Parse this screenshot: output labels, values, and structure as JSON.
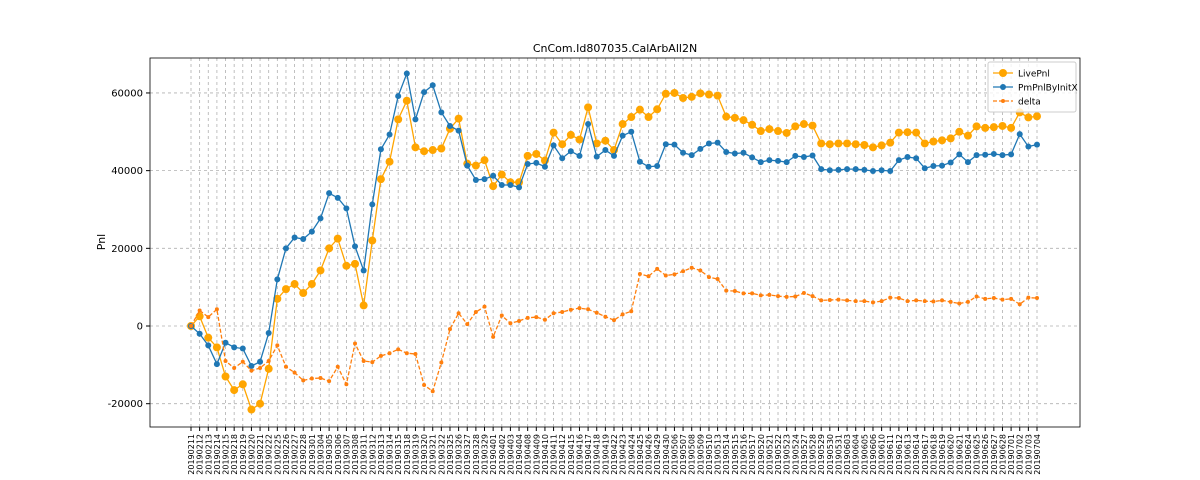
{
  "chart_data": {
    "type": "line",
    "title": "CnCom.Id807035.CalArbAll2N",
    "ylabel": "Pnl",
    "categories": [
      "20190211",
      "20190212",
      "20190213",
      "20190214",
      "20190215",
      "20190218",
      "20190219",
      "20190220",
      "20190221",
      "20190222",
      "20190225",
      "20190226",
      "20190227",
      "20190228",
      "20190301",
      "20190304",
      "20190305",
      "20190306",
      "20190307",
      "20190308",
      "20190311",
      "20190312",
      "20190313",
      "20190314",
      "20190315",
      "20190318",
      "20190319",
      "20190320",
      "20190321",
      "20190322",
      "20190325",
      "20190326",
      "20190327",
      "20190328",
      "20190329",
      "20190401",
      "20190402",
      "20190403",
      "20190404",
      "20190408",
      "20190409",
      "20190410",
      "20190411",
      "20190412",
      "20190415",
      "20190416",
      "20190417",
      "20190418",
      "20190419",
      "20190422",
      "20190423",
      "20190424",
      "20190425",
      "20190426",
      "20190429",
      "20190430",
      "20190506",
      "20190507",
      "20190508",
      "20190509",
      "20190510",
      "20190513",
      "20190514",
      "20190515",
      "20190516",
      "20190517",
      "20190520",
      "20190521",
      "20190522",
      "20190523",
      "20190524",
      "20190527",
      "20190528",
      "20190529",
      "20190530",
      "20190531",
      "20190603",
      "20190604",
      "20190605",
      "20190606",
      "20190610",
      "20190611",
      "20190612",
      "20190613",
      "20190614",
      "20190617",
      "20190618",
      "20190619",
      "20190620",
      "20190621",
      "20190624",
      "20190625",
      "20190626",
      "20190627",
      "20190628",
      "20190701",
      "20190702",
      "20190703",
      "20190704"
    ],
    "series": [
      {
        "name": "LivePnl",
        "color": "#ffa500",
        "style": "solid",
        "marker_size": 4,
        "values": [
          0,
          2500,
          -3000,
          -5500,
          -13000,
          -16500,
          -15000,
          -21500,
          -20000,
          -11000,
          7000,
          9500,
          10800,
          8500,
          10800,
          14300,
          20000,
          22500,
          15500,
          16000,
          5300,
          22000,
          37800,
          42300,
          53200,
          58000,
          46000,
          45000,
          45300,
          45700,
          50800,
          53400,
          41800,
          41300,
          42700,
          36000,
          39000,
          37000,
          37000,
          43800,
          44300,
          42600,
          49800,
          46800,
          49200,
          48000,
          56300,
          47000,
          47700,
          45300,
          52000,
          53800,
          55700,
          53800,
          55800,
          59800,
          60000,
          58700,
          59000,
          59900,
          59600,
          59300,
          53900,
          53600,
          53000,
          51800,
          50200,
          50700,
          50200,
          49700,
          51400,
          52000,
          51600,
          47000,
          46800,
          47000,
          47000,
          46800,
          46600,
          46000,
          46500,
          47200,
          49800,
          49900,
          49800,
          47000,
          47500,
          47800,
          48300,
          50000,
          49000,
          51400,
          51000,
          51200,
          51500,
          51000,
          55000,
          53700,
          54000
        ]
      },
      {
        "name": "PmPnlByInitX",
        "color": "#1f77b4",
        "style": "solid",
        "marker_size": 3,
        "values": [
          0,
          -2000,
          -5000,
          -9800,
          -4300,
          -5500,
          -5800,
          -10300,
          -9200,
          -1800,
          12000,
          20000,
          22800,
          22400,
          24300,
          27700,
          34200,
          33000,
          30300,
          20500,
          14300,
          31300,
          45500,
          49300,
          59200,
          65000,
          53200,
          60200,
          62000,
          55000,
          51500,
          50300,
          41300,
          37600,
          37800,
          38700,
          36300,
          36300,
          35700,
          41700,
          42000,
          41000,
          46500,
          43200,
          45000,
          43800,
          52000,
          43600,
          45300,
          43800,
          49000,
          50000,
          42300,
          41000,
          41200,
          46800,
          46700,
          44600,
          44000,
          45600,
          47000,
          47200,
          44800,
          44400,
          44600,
          43400,
          42200,
          42700,
          42500,
          42200,
          43800,
          43500,
          43900,
          40400,
          40100,
          40200,
          40400,
          40400,
          40200,
          39900,
          40100,
          39900,
          42700,
          43500,
          43200,
          40600,
          41200,
          41300,
          42100,
          44200,
          42200,
          44000,
          44100,
          44300,
          44000,
          44200,
          49400,
          46200,
          46700
        ]
      },
      {
        "name": "delta",
        "color": "#ff7f0e",
        "style": "dashed",
        "marker_size": 2,
        "values": [
          0,
          4000,
          2300,
          4300,
          -9000,
          -10800,
          -9200,
          -11500,
          -10800,
          -9000,
          -5000,
          -10500,
          -12000,
          -14000,
          -13500,
          -13400,
          -14200,
          -10500,
          -15000,
          -4500,
          -9000,
          -9300,
          -7700,
          -7000,
          -6000,
          -7000,
          -7200,
          -15200,
          -16800,
          -9400,
          -800,
          3300,
          500,
          3600,
          5000,
          -2800,
          2700,
          700,
          1300,
          2100,
          2300,
          1600,
          3300,
          3600,
          4200,
          4600,
          4300,
          3400,
          2400,
          1500,
          3000,
          3800,
          13400,
          12800,
          14700,
          13000,
          13300,
          14100,
          15000,
          14300,
          12600,
          12100,
          9100,
          9000,
          8400,
          8400,
          7900,
          8000,
          7700,
          7500,
          7600,
          8500,
          7700,
          6600,
          6700,
          6800,
          6600,
          6400,
          6400,
          6100,
          6400,
          7300,
          7200,
          6400,
          6600,
          6400,
          6300,
          6600,
          6200,
          5800,
          6200,
          7600,
          7000,
          7200,
          6800,
          7000,
          5600,
          7300,
          7200
        ]
      }
    ],
    "ylim": [
      -26000,
      69000
    ],
    "yticks": [
      -20000,
      0,
      20000,
      40000,
      60000
    ],
    "grid": true,
    "legend": "upper right"
  }
}
